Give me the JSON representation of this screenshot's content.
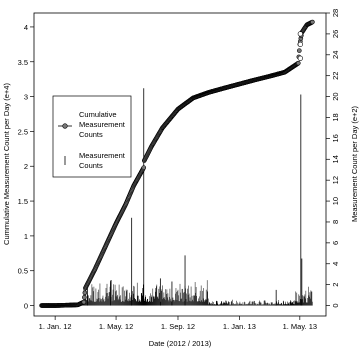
{
  "chart_data": {
    "type": "line",
    "xlabel": "Date (2012 / 2013)",
    "ylabel_left": "Cummulative Measurement Count per Day (e+4)",
    "ylabel_right": "Measurement Count per Day (e+2)",
    "x_domain": [
      "2011-11-20",
      "2013-06-22"
    ],
    "x_ticks": [
      {
        "date": "2012-01-01",
        "label": "1. Jan. 12"
      },
      {
        "date": "2012-05-01",
        "label": "1. May. 12"
      },
      {
        "date": "2012-09-01",
        "label": "1. Sep. 12"
      },
      {
        "date": "2013-01-01",
        "label": "1. Jan. 13"
      },
      {
        "date": "2013-05-01",
        "label": "1. May. 13"
      }
    ],
    "y_left": {
      "lim": [
        -0.15,
        4.2
      ],
      "ticks": [
        "0",
        "0.5",
        "1",
        "1.5",
        "2",
        "2.5",
        "3",
        "3.5",
        "4"
      ]
    },
    "y_right": {
      "lim": [
        -1,
        28
      ],
      "ticks": [
        "0",
        "2",
        "4",
        "6",
        "8",
        "10",
        "12",
        "14",
        "16",
        "18",
        "20",
        "22",
        "24",
        "26",
        "28"
      ]
    },
    "legend": {
      "position": "middle-left",
      "entries": [
        {
          "label_lines": [
            "Cumulative",
            "Measurement",
            "Counts"
          ],
          "marker": "line-circle"
        },
        {
          "label_lines": [
            "Measurement",
            "Counts"
          ],
          "marker": "vertical-bar"
        }
      ]
    },
    "series": [
      {
        "name": "Cumulative Measurement Counts",
        "axis": "left",
        "style": "circles",
        "points": [
          [
            "2011-12-05",
            0.0
          ],
          [
            "2012-01-01",
            0.0
          ],
          [
            "2012-02-15",
            0.01
          ],
          [
            "2012-02-27",
            0.05
          ],
          [
            "2012-03-01",
            0.25
          ],
          [
            "2012-03-20",
            0.52
          ],
          [
            "2012-04-10",
            0.85
          ],
          [
            "2012-05-01",
            1.18
          ],
          [
            "2012-05-20",
            1.45
          ],
          [
            "2012-06-05",
            1.72
          ],
          [
            "2012-06-25",
            1.98
          ],
          [
            "2012-06-26",
            2.08
          ],
          [
            "2012-07-10",
            2.28
          ],
          [
            "2012-08-01",
            2.55
          ],
          [
            "2012-09-01",
            2.82
          ],
          [
            "2012-10-01",
            2.98
          ],
          [
            "2012-11-01",
            3.06
          ],
          [
            "2012-12-01",
            3.12
          ],
          [
            "2013-01-01",
            3.18
          ],
          [
            "2013-02-01",
            3.24
          ],
          [
            "2013-03-01",
            3.29
          ],
          [
            "2013-04-01",
            3.35
          ],
          [
            "2013-04-28",
            3.48
          ],
          [
            "2013-05-01",
            3.75
          ],
          [
            "2013-05-05",
            3.92
          ],
          [
            "2013-05-15",
            4.03
          ],
          [
            "2013-05-26",
            4.07
          ]
        ]
      },
      {
        "name": "Measurement Counts",
        "axis": "right",
        "style": "spikes",
        "baseline_noise": [
          {
            "from": "2011-12-05",
            "to": "2012-02-26",
            "amp": 0.15
          },
          {
            "from": "2012-02-27",
            "to": "2012-10-31",
            "amp": 1.4
          },
          {
            "from": "2012-11-01",
            "to": "2013-04-20",
            "amp": 0.35
          },
          {
            "from": "2013-04-21",
            "to": "2013-05-26",
            "amp": 1.1
          }
        ],
        "spikes": [
          [
            "2012-06-25",
            20.8
          ],
          [
            "2012-06-01",
            8.4
          ],
          [
            "2012-09-15",
            4.8
          ],
          [
            "2013-03-15",
            1.5
          ],
          [
            "2013-05-03",
            20.2
          ],
          [
            "2013-05-05",
            4.5
          ],
          [
            "2012-03-05",
            2.2
          ],
          [
            "2012-04-20",
            2.4
          ],
          [
            "2012-07-28",
            2.6
          ],
          [
            "2012-08-20",
            2.3
          ]
        ]
      }
    ]
  }
}
